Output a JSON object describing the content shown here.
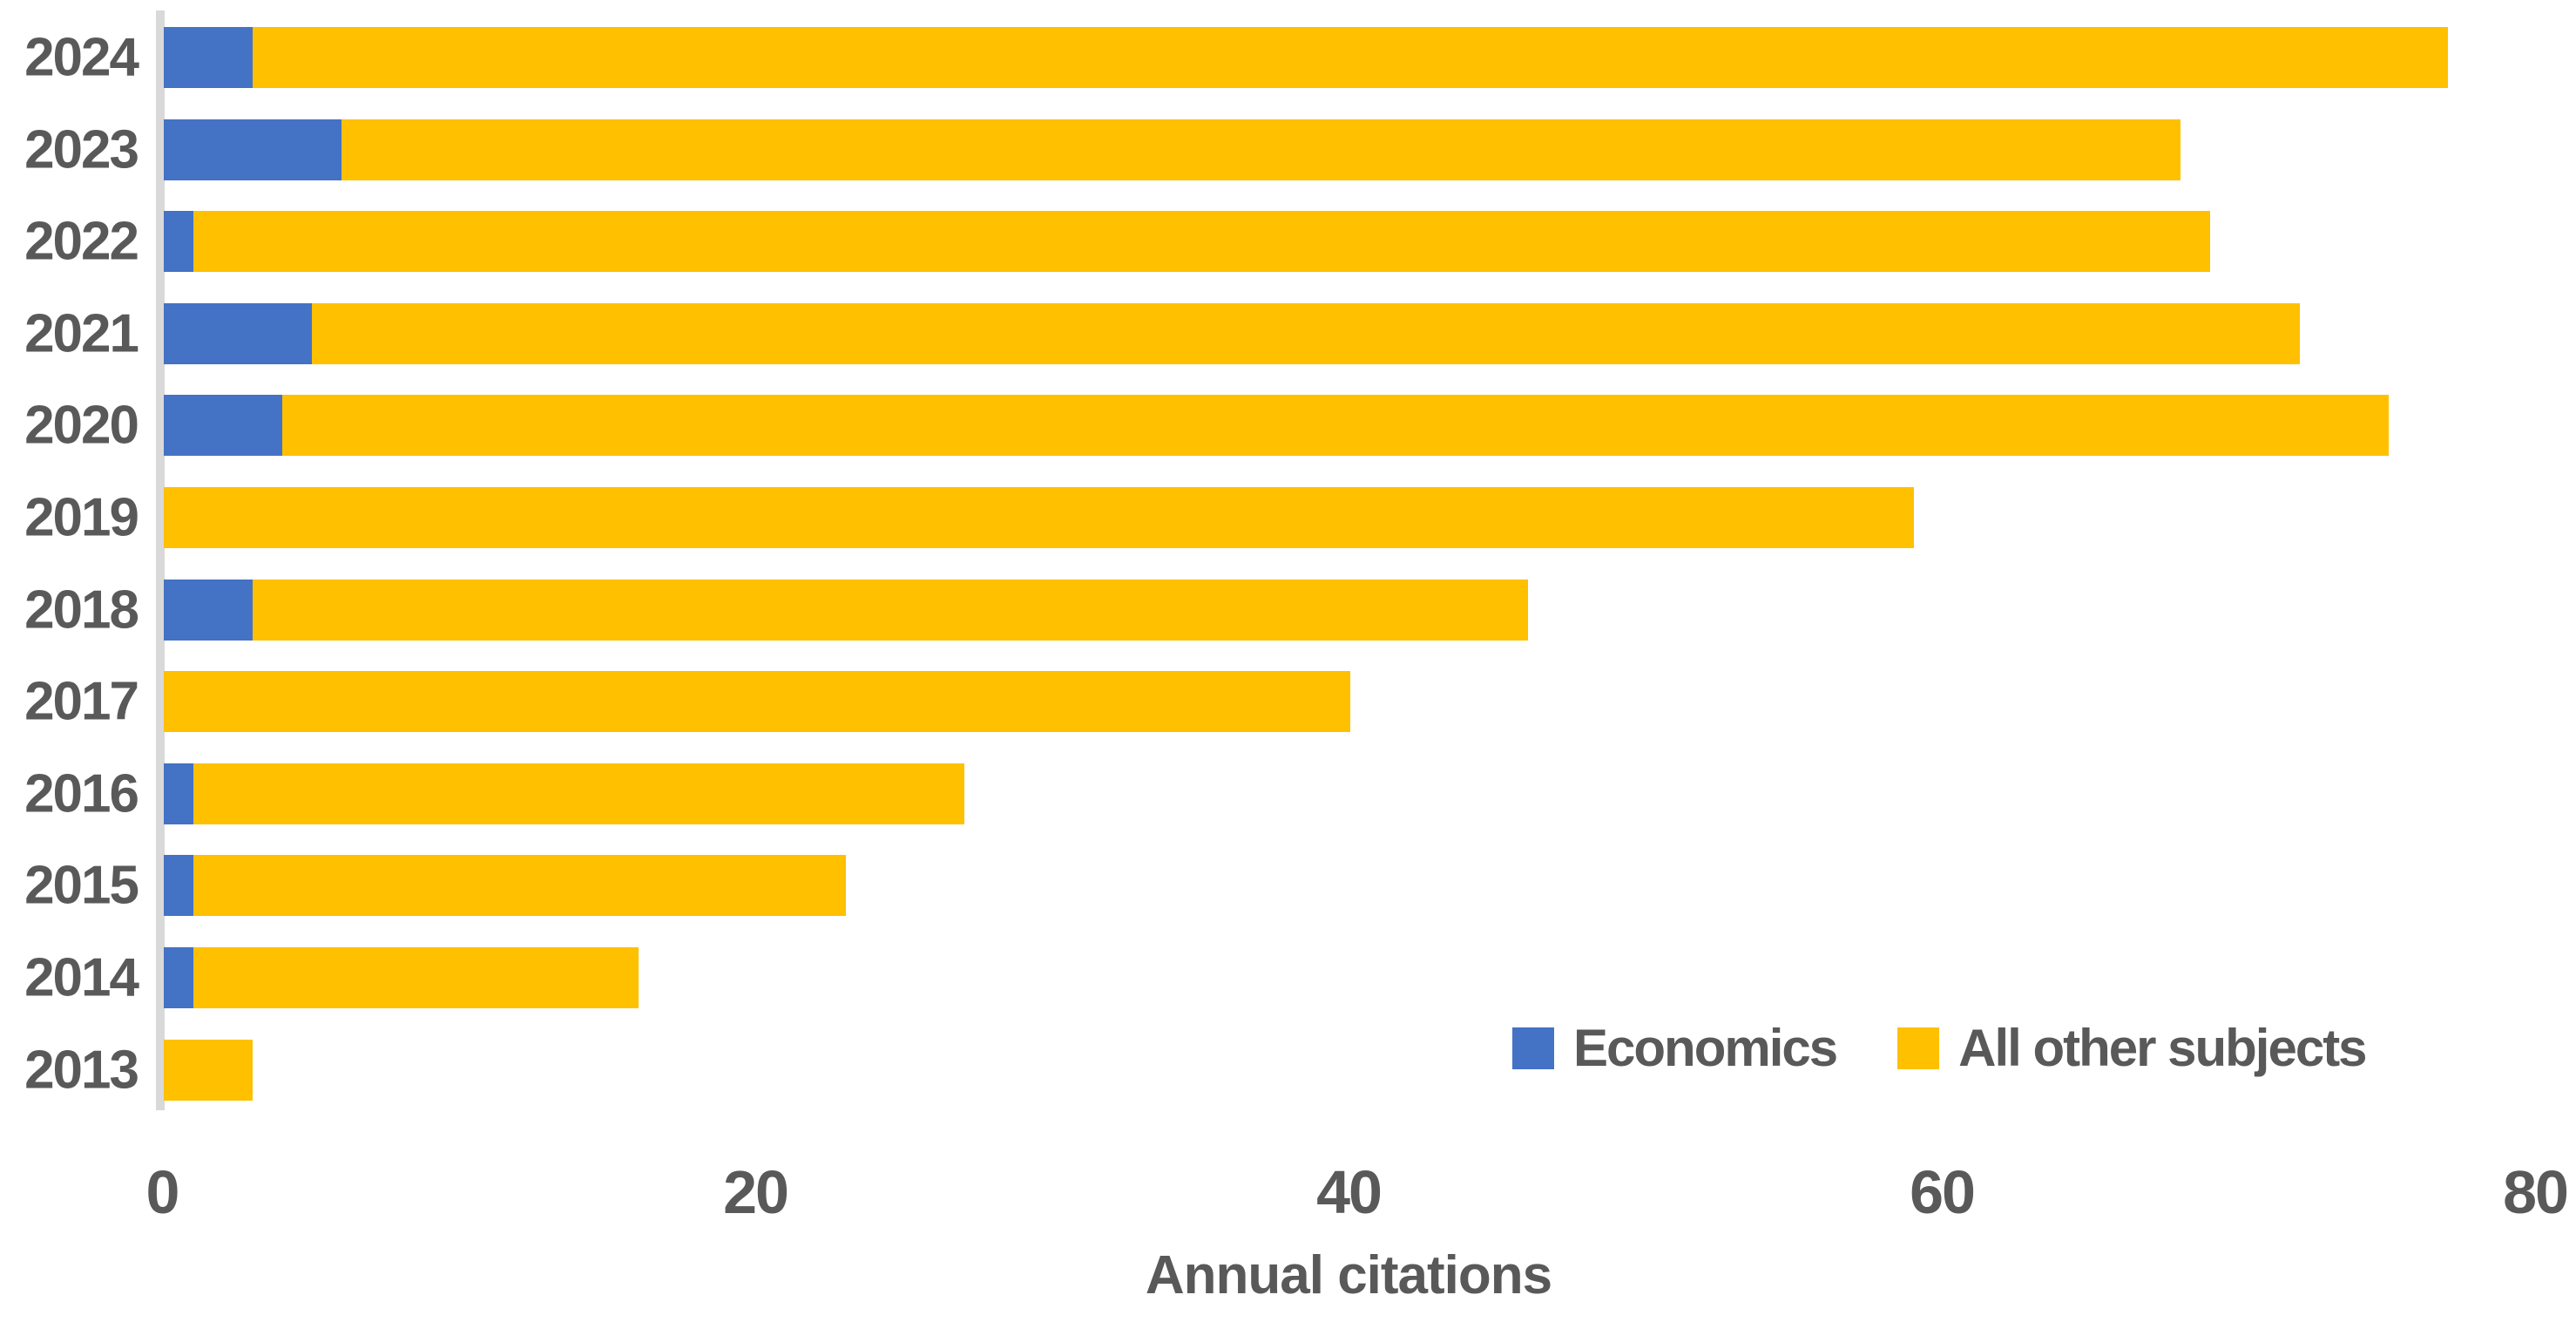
{
  "chart_data": {
    "type": "bar",
    "orientation": "horizontal",
    "stacked": true,
    "title": "",
    "xlabel": "Annual citations",
    "ylabel": "",
    "categories": [
      "2024",
      "2023",
      "2022",
      "2021",
      "2020",
      "2019",
      "2018",
      "2017",
      "2016",
      "2015",
      "2014",
      "2013"
    ],
    "series": [
      {
        "name": "Economics",
        "color": "#4472C4",
        "values": [
          3,
          6,
          1,
          5,
          4,
          0,
          3,
          0,
          1,
          1,
          1,
          0
        ]
      },
      {
        "name": "All other subjects",
        "color": "#FFC000",
        "values": [
          74,
          62,
          68,
          67,
          71,
          59,
          43,
          40,
          26,
          22,
          15,
          3
        ]
      }
    ],
    "totals": [
      77,
      68,
      69,
      72,
      75,
      59,
      46,
      40,
      27,
      23,
      16,
      3
    ],
    "xlim": [
      0,
      80
    ],
    "xticks": [
      "0",
      "20",
      "40",
      "60",
      "80"
    ],
    "grid": false,
    "legend_position": "inside-bottom-right"
  },
  "colors": {
    "economics": "#4472C4",
    "all_other_subjects": "#FFC000",
    "axis_line": "#D9D9D9",
    "text": "#595959",
    "background": "#FFFFFF"
  }
}
